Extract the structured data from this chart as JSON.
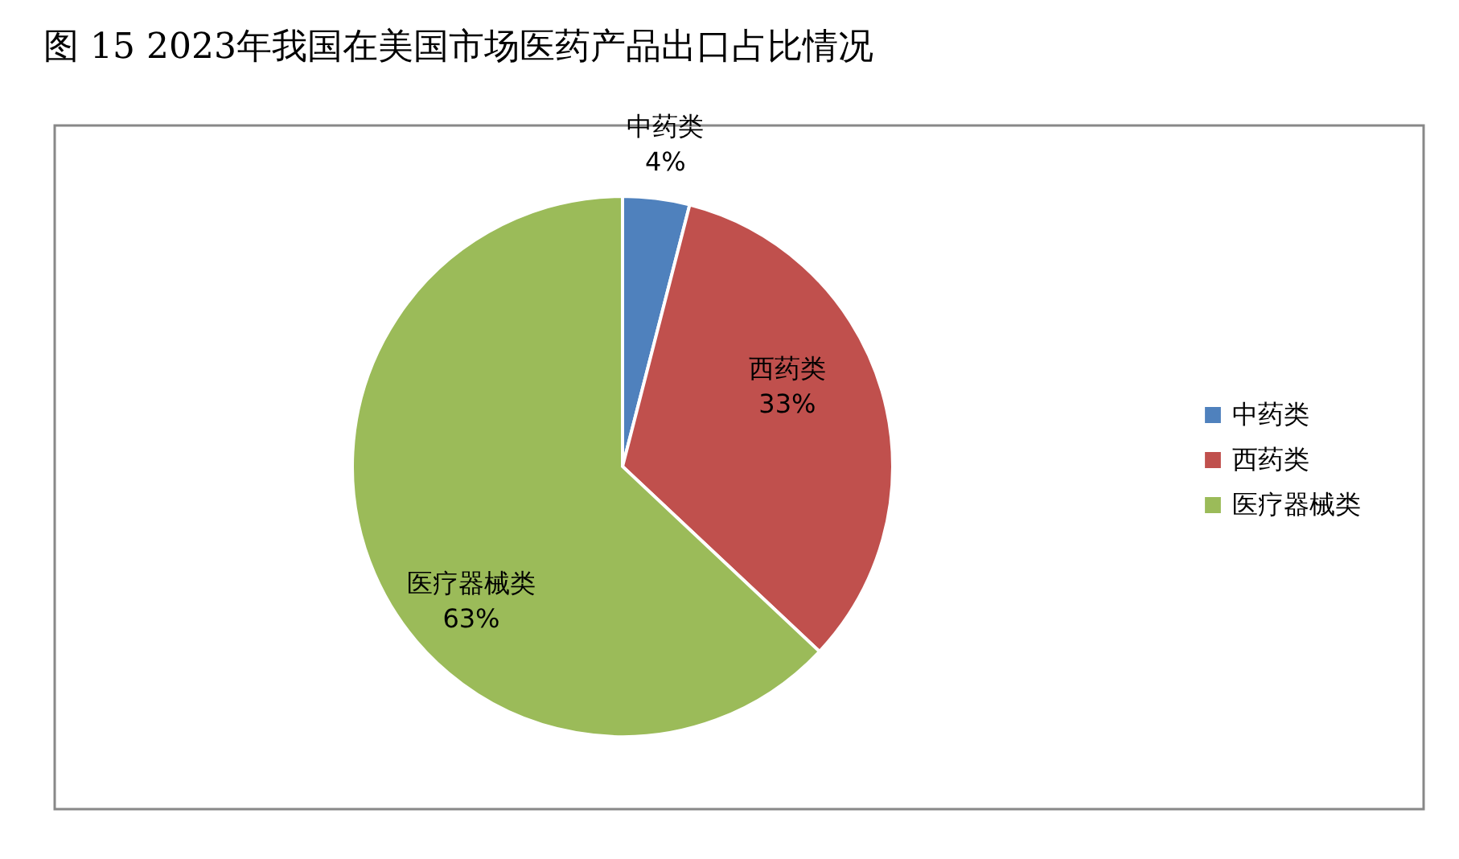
{
  "chart_data": {
    "type": "pie",
    "title": "图 15 2023年我国在美国市场医药产品出口占比情况",
    "categories": [
      "中药类",
      "西药类",
      "医疗器械类"
    ],
    "values": [
      4,
      33,
      63
    ],
    "colors": [
      "#4f81bd",
      "#c0504d",
      "#9bbb59"
    ],
    "value_labels": [
      "4%",
      "33%",
      "63%"
    ],
    "legend": "right"
  }
}
